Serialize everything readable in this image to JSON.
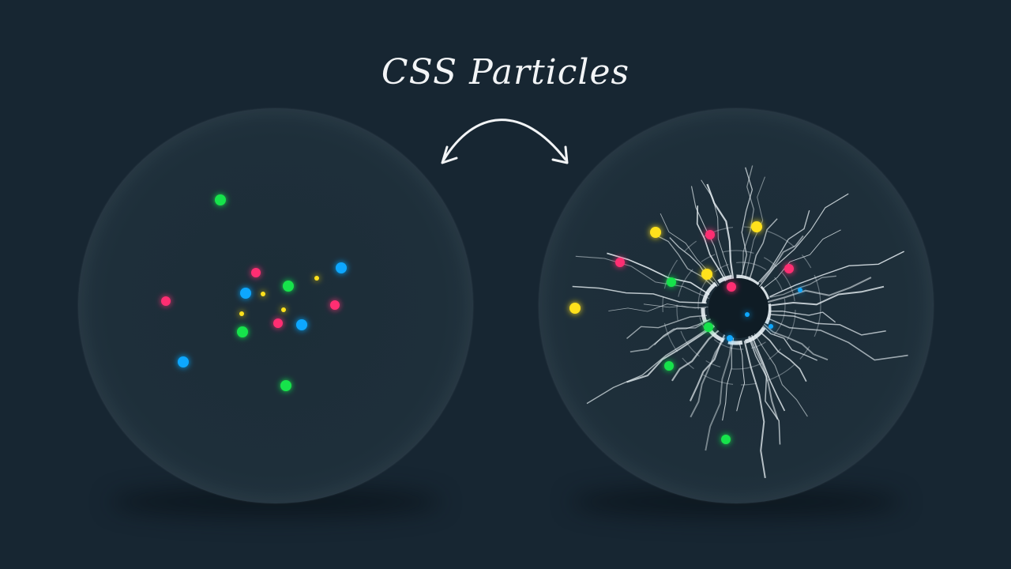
{
  "title": "CSS Particles",
  "colors": {
    "background": "#172632",
    "green": "#19e34c",
    "pink": "#ff2f72",
    "blue": "#0ea7ff",
    "yellow": "#ffe11a",
    "glass": "#e9f1f5"
  },
  "scenes": [
    {
      "name": "intact-sphere",
      "state": "particles floating"
    },
    {
      "name": "shattered-sphere",
      "state": "glass cracked"
    }
  ]
}
